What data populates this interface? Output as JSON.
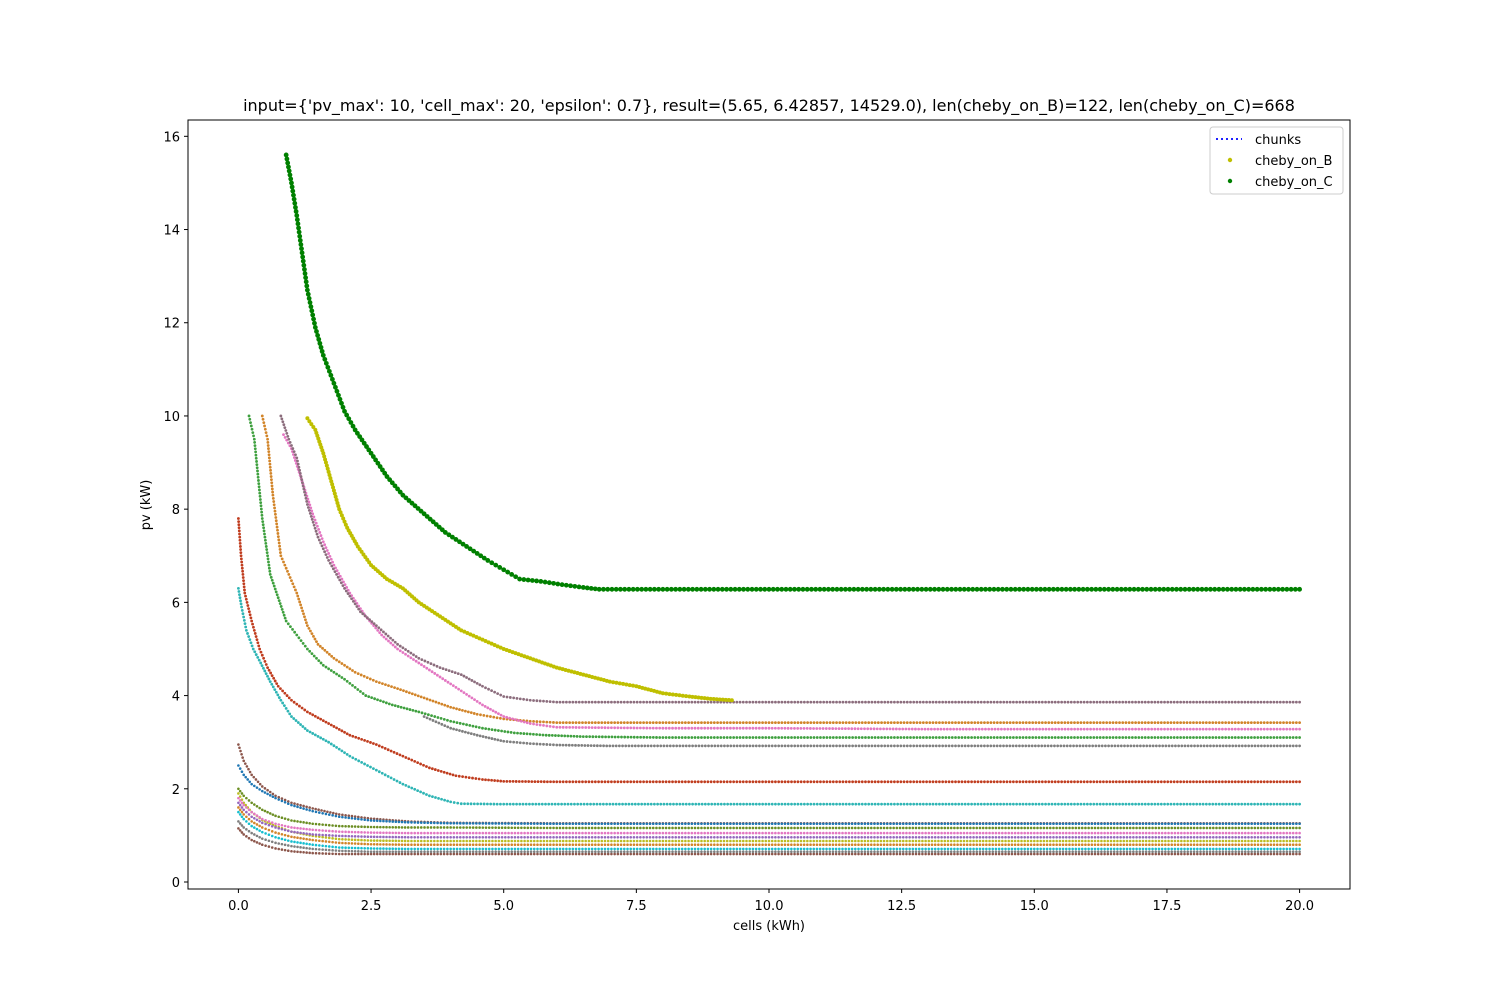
{
  "chart_data": {
    "type": "scatter",
    "title": "input={'pv_max': 10, 'cell_max': 20, 'epsilon': 0.7}, result=(5.65, 6.42857, 14529.0), len(cheby_on_B)=122, len(cheby_on_C)=668",
    "xlabel": "cells (kWh)",
    "ylabel": "pv (kW)",
    "xlim": [
      -0.95,
      20.95
    ],
    "ylim": [
      -0.15,
      16.35
    ],
    "xticks": [
      "0.0",
      "2.5",
      "5.0",
      "7.5",
      "10.0",
      "12.5",
      "15.0",
      "17.5",
      "20.0"
    ],
    "xtick_values": [
      0,
      2.5,
      5,
      7.5,
      10,
      12.5,
      15,
      17.5,
      20
    ],
    "yticks": [
      "0",
      "2",
      "4",
      "6",
      "8",
      "10",
      "12",
      "14",
      "16"
    ],
    "ytick_values": [
      0,
      2,
      4,
      6,
      8,
      10,
      12,
      14,
      16
    ],
    "grid": false,
    "legend_position": "top-right",
    "legend": [
      {
        "label": "chunks",
        "style": "dotted-line",
        "color": "#0000ff"
      },
      {
        "label": "cheby_on_B",
        "style": "marker",
        "color": "#bfbf00"
      },
      {
        "label": "cheby_on_C",
        "style": "marker",
        "color": "#008000"
      }
    ],
    "series": [
      {
        "name": "cheby_on_C",
        "color": "#008000",
        "marker_r": 2.4,
        "x": [
          0.9,
          1.0,
          1.1,
          1.2,
          1.3,
          1.45,
          1.6,
          1.8,
          2.0,
          2.2,
          2.5,
          2.8,
          3.1,
          3.5,
          3.9,
          4.3,
          4.7,
          5.0,
          5.3,
          5.7,
          6.1,
          6.5,
          6.8,
          8.0,
          10.0,
          12.0,
          14.0,
          16.0,
          18.0,
          20.0
        ],
        "y": [
          15.6,
          15.0,
          14.3,
          13.5,
          12.7,
          11.9,
          11.3,
          10.7,
          10.1,
          9.7,
          9.2,
          8.7,
          8.3,
          7.9,
          7.5,
          7.2,
          6.9,
          6.7,
          6.5,
          6.45,
          6.38,
          6.32,
          6.28,
          6.28,
          6.28,
          6.28,
          6.28,
          6.28,
          6.28,
          6.28
        ]
      },
      {
        "name": "cheby_on_B",
        "color": "#bfbf00",
        "marker_r": 2.0,
        "x": [
          1.3,
          1.45,
          1.6,
          1.75,
          1.9,
          2.05,
          2.25,
          2.5,
          2.8,
          3.1,
          3.4,
          3.8,
          4.2,
          4.6,
          5.0,
          5.5,
          6.0,
          6.5,
          7.0,
          7.5,
          8.0,
          8.5,
          8.9,
          9.3
        ],
        "y": [
          9.95,
          9.7,
          9.2,
          8.6,
          8.0,
          7.6,
          7.2,
          6.8,
          6.5,
          6.3,
          6.0,
          5.7,
          5.4,
          5.2,
          5.0,
          4.8,
          4.6,
          4.45,
          4.3,
          4.2,
          4.05,
          3.98,
          3.93,
          3.9
        ]
      },
      {
        "name": "",
        "color": "#8c6d7d",
        "marker_r": 1.4,
        "x": [
          0.8,
          0.95,
          1.1,
          1.3,
          1.5,
          1.7,
          2.0,
          2.3,
          2.6,
          3.0,
          3.4,
          3.8,
          4.2,
          4.6,
          5.0,
          5.5,
          6.0,
          8.0,
          10.0,
          14.0,
          18.0,
          20.0
        ],
        "y": [
          10.0,
          9.5,
          9.1,
          8.1,
          7.4,
          6.9,
          6.3,
          5.8,
          5.5,
          5.1,
          4.8,
          4.6,
          4.45,
          4.2,
          3.98,
          3.9,
          3.86,
          3.86,
          3.86,
          3.86,
          3.86,
          3.86
        ]
      },
      {
        "name": "",
        "color": "#e377c2",
        "marker_r": 1.4,
        "x": [
          0.85,
          1.0,
          1.2,
          1.4,
          1.6,
          1.8,
          2.1,
          2.4,
          2.7,
          3.0,
          3.4,
          3.8,
          4.2,
          4.6,
          5.0,
          5.5,
          6.0,
          8.0,
          10.0,
          13.0,
          16.0,
          20.0
        ],
        "y": [
          9.6,
          9.3,
          8.6,
          7.9,
          7.3,
          6.8,
          6.2,
          5.7,
          5.3,
          5.0,
          4.7,
          4.4,
          4.1,
          3.8,
          3.55,
          3.4,
          3.32,
          3.3,
          3.3,
          3.28,
          3.28,
          3.28
        ]
      },
      {
        "name": "",
        "color": "#d2852a",
        "marker_r": 1.4,
        "x": [
          0.45,
          0.55,
          0.65,
          0.8,
          0.95,
          1.1,
          1.3,
          1.5,
          1.8,
          2.2,
          2.6,
          3.0,
          3.5,
          4.0,
          4.5,
          5.0,
          5.5,
          6.0,
          8.0,
          12.0,
          16.0,
          20.0
        ],
        "y": [
          10.0,
          9.5,
          8.3,
          7.0,
          6.6,
          6.2,
          5.5,
          5.1,
          4.8,
          4.5,
          4.3,
          4.15,
          3.95,
          3.75,
          3.6,
          3.5,
          3.45,
          3.42,
          3.42,
          3.42,
          3.42,
          3.42
        ]
      },
      {
        "name": "",
        "color": "#3fa03f",
        "marker_r": 1.4,
        "x": [
          0.2,
          0.3,
          0.45,
          0.6,
          0.75,
          0.9,
          1.1,
          1.3,
          1.6,
          2.0,
          2.4,
          2.9,
          3.4,
          4.0,
          4.6,
          5.2,
          5.8,
          6.5,
          8.0,
          12.0,
          16.0,
          20.0
        ],
        "y": [
          10.0,
          9.5,
          7.8,
          6.6,
          6.1,
          5.6,
          5.3,
          5.0,
          4.65,
          4.35,
          4.0,
          3.8,
          3.65,
          3.45,
          3.3,
          3.2,
          3.15,
          3.12,
          3.1,
          3.1,
          3.1,
          3.1
        ]
      },
      {
        "name": "",
        "color": "#7f7f7f",
        "marker_r": 1.4,
        "x": [
          3.5,
          4.0,
          4.5,
          5.0,
          5.5,
          6.0,
          7.0,
          10.0,
          14.0,
          17.0,
          20.0
        ],
        "y": [
          3.55,
          3.3,
          3.15,
          3.02,
          2.97,
          2.94,
          2.92,
          2.92,
          2.92,
          2.92,
          2.92
        ]
      },
      {
        "name": "",
        "color": "#c03d1f",
        "marker_r": 1.4,
        "x": [
          0.0,
          0.05,
          0.12,
          0.25,
          0.4,
          0.55,
          0.75,
          1.0,
          1.3,
          1.7,
          2.1,
          2.6,
          3.1,
          3.6,
          4.1,
          4.6,
          5.0,
          6.0,
          8.0,
          12.0,
          16.0,
          20.0
        ],
        "y": [
          7.8,
          7.0,
          6.2,
          5.6,
          5.0,
          4.6,
          4.2,
          3.9,
          3.65,
          3.4,
          3.15,
          2.95,
          2.7,
          2.45,
          2.28,
          2.2,
          2.16,
          2.15,
          2.15,
          2.15,
          2.15,
          2.15
        ]
      },
      {
        "name": "",
        "color": "#2fb5b5",
        "marker_r": 1.4,
        "x": [
          0.0,
          0.06,
          0.15,
          0.28,
          0.42,
          0.6,
          0.8,
          1.0,
          1.3,
          1.7,
          2.1,
          2.6,
          3.1,
          3.6,
          4.0,
          4.2,
          5.0,
          7.0,
          10.0,
          14.0,
          18.0,
          20.0
        ],
        "y": [
          6.3,
          5.9,
          5.4,
          5.0,
          4.7,
          4.3,
          3.9,
          3.55,
          3.25,
          3.0,
          2.7,
          2.4,
          2.1,
          1.85,
          1.72,
          1.68,
          1.67,
          1.67,
          1.67,
          1.67,
          1.67,
          1.67
        ]
      },
      {
        "name": "",
        "color": "#1f77b4",
        "marker_r": 1.3,
        "x": [
          0.0,
          0.1,
          0.25,
          0.45,
          0.7,
          1.0,
          1.4,
          1.9,
          2.5,
          3.2,
          4.0,
          6.0,
          10.0,
          15.0,
          20.0
        ],
        "y": [
          2.5,
          2.3,
          2.1,
          1.95,
          1.8,
          1.65,
          1.52,
          1.4,
          1.32,
          1.28,
          1.26,
          1.25,
          1.25,
          1.25,
          1.25
        ]
      },
      {
        "name": "",
        "color": "#8c564b",
        "marker_r": 1.3,
        "x": [
          0.0,
          0.1,
          0.25,
          0.45,
          0.7,
          1.0,
          1.4,
          1.9,
          2.5,
          3.2,
          4.0,
          6.0,
          10.0,
          15.0,
          20.0
        ],
        "y": [
          2.95,
          2.6,
          2.3,
          2.05,
          1.85,
          1.7,
          1.58,
          1.45,
          1.36,
          1.3,
          1.27,
          1.26,
          1.26,
          1.26,
          1.26
        ]
      },
      {
        "name": "",
        "color": "#6b8e23",
        "marker_r": 1.3,
        "x": [
          0.0,
          0.1,
          0.25,
          0.45,
          0.7,
          1.0,
          1.4,
          1.9,
          2.5,
          3.2,
          4.0,
          6.0,
          10.0,
          15.0,
          20.0
        ],
        "y": [
          2.0,
          1.85,
          1.7,
          1.55,
          1.42,
          1.32,
          1.25,
          1.2,
          1.18,
          1.17,
          1.17,
          1.16,
          1.16,
          1.16,
          1.16
        ]
      },
      {
        "name": "",
        "color": "#e377c2",
        "marker_r": 1.3,
        "x": [
          0.0,
          0.1,
          0.25,
          0.45,
          0.7,
          1.0,
          1.4,
          1.9,
          2.5,
          3.2,
          4.0,
          6.0,
          10.0,
          15.0,
          20.0
        ],
        "y": [
          1.8,
          1.65,
          1.5,
          1.35,
          1.25,
          1.17,
          1.12,
          1.08,
          1.06,
          1.05,
          1.05,
          1.05,
          1.05,
          1.05,
          1.05
        ]
      },
      {
        "name": "",
        "color": "#9467bd",
        "marker_r": 1.3,
        "x": [
          0.0,
          0.1,
          0.25,
          0.45,
          0.7,
          1.0,
          1.4,
          1.9,
          2.5,
          3.2,
          4.0,
          6.0,
          10.0,
          15.0,
          20.0
        ],
        "y": [
          1.7,
          1.55,
          1.4,
          1.27,
          1.17,
          1.08,
          1.02,
          0.99,
          0.97,
          0.96,
          0.96,
          0.96,
          0.96,
          0.96,
          0.96
        ]
      },
      {
        "name": "",
        "color": "#bcbd22",
        "marker_r": 1.3,
        "x": [
          0.0,
          0.1,
          0.25,
          0.45,
          0.7,
          1.0,
          1.4,
          1.9,
          2.5,
          3.2,
          4.0,
          6.0,
          10.0,
          15.0,
          20.0
        ],
        "y": [
          1.9,
          1.7,
          1.5,
          1.33,
          1.2,
          1.08,
          0.99,
          0.92,
          0.89,
          0.88,
          0.88,
          0.88,
          0.88,
          0.88,
          0.88
        ]
      },
      {
        "name": "",
        "color": "#d2852a",
        "marker_r": 1.3,
        "x": [
          0.0,
          0.1,
          0.25,
          0.45,
          0.7,
          1.0,
          1.4,
          1.9,
          2.5,
          3.2,
          4.0,
          6.0,
          10.0,
          15.0,
          20.0
        ],
        "y": [
          1.6,
          1.45,
          1.3,
          1.17,
          1.06,
          0.97,
          0.9,
          0.84,
          0.81,
          0.8,
          0.8,
          0.8,
          0.8,
          0.8,
          0.8
        ]
      },
      {
        "name": "",
        "color": "#17becf",
        "marker_r": 1.3,
        "x": [
          0.0,
          0.1,
          0.25,
          0.45,
          0.7,
          1.0,
          1.4,
          1.9,
          2.5,
          3.2,
          4.0,
          6.0,
          10.0,
          15.0,
          20.0
        ],
        "y": [
          1.5,
          1.35,
          1.2,
          1.07,
          0.96,
          0.87,
          0.8,
          0.74,
          0.72,
          0.71,
          0.71,
          0.71,
          0.71,
          0.71,
          0.71
        ]
      },
      {
        "name": "",
        "color": "#7f7f7f",
        "marker_r": 1.3,
        "x": [
          0.0,
          0.1,
          0.25,
          0.45,
          0.7,
          1.0,
          1.4,
          1.9,
          2.5,
          3.2,
          4.0,
          6.0,
          10.0,
          15.0,
          20.0
        ],
        "y": [
          1.3,
          1.17,
          1.05,
          0.93,
          0.84,
          0.77,
          0.71,
          0.67,
          0.65,
          0.65,
          0.65,
          0.65,
          0.65,
          0.65,
          0.65
        ]
      },
      {
        "name": "",
        "color": "#8c564b",
        "marker_r": 1.3,
        "x": [
          0.0,
          0.1,
          0.25,
          0.45,
          0.7,
          1.0,
          1.4,
          1.9,
          2.5,
          3.2,
          4.0,
          6.0,
          10.0,
          15.0,
          20.0
        ],
        "y": [
          1.15,
          1.02,
          0.9,
          0.8,
          0.72,
          0.66,
          0.62,
          0.6,
          0.6,
          0.6,
          0.6,
          0.6,
          0.6,
          0.6,
          0.6
        ]
      }
    ]
  }
}
